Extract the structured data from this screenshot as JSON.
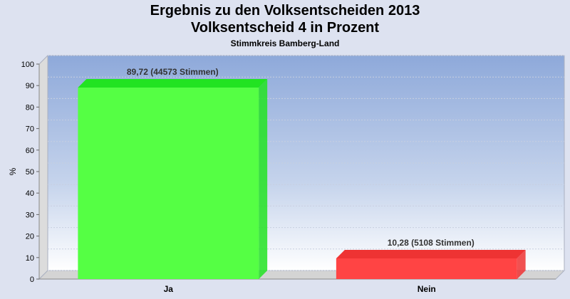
{
  "chart_data": {
    "type": "bar",
    "title": "Ergebnis zu den Volksentscheiden 2013",
    "title_line2": "Volksentscheid 4 in Prozent",
    "subtitle": "Stimmkreis Bamberg-Land",
    "ylabel": "%",
    "xlabel": "",
    "ylim": [
      0,
      100
    ],
    "yticks": [
      0,
      10,
      20,
      30,
      40,
      50,
      60,
      70,
      80,
      90,
      100
    ],
    "grid": true,
    "categories": [
      "Ja",
      "Nein"
    ],
    "values": [
      89.72,
      10.28
    ],
    "data_labels": [
      "89,72 (44573 Stimmen)",
      "10,28 (5108 Stimmen)"
    ],
    "colors": [
      "#22e322",
      "#ee3333"
    ],
    "colors_light": [
      "#55ff44",
      "#ff4444"
    ]
  }
}
